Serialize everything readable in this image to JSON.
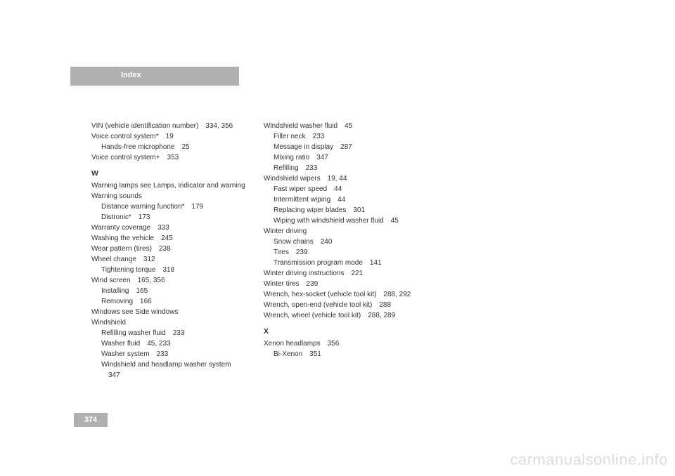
{
  "header": {
    "title": "Index"
  },
  "pageNumber": "374",
  "watermark": "carmanualsonline.info",
  "columns": [
    {
      "entries": [
        {
          "lvl": 0,
          "text": "VIN (vehicle identification number) 334, 356"
        },
        {
          "lvl": 0,
          "text": "Voice control system* 19"
        },
        {
          "lvl": 1,
          "text": "Hands-free microphone 25"
        },
        {
          "lvl": 0,
          "text": "Voice control system+ 353"
        },
        {
          "letter": "W"
        },
        {
          "lvl": 0,
          "text": "Warning lamps see Lamps, indicator and warning"
        },
        {
          "lvl": 0,
          "text": "Warning sounds"
        },
        {
          "lvl": 1,
          "text": "Distance warning function* 179"
        },
        {
          "lvl": 1,
          "text": "Distronic* 173"
        },
        {
          "lvl": 0,
          "text": "Warranty coverage 333"
        },
        {
          "lvl": 0,
          "text": "Washing the vehicle 245"
        },
        {
          "lvl": 0,
          "text": "Wear pattern (tires) 238"
        },
        {
          "lvl": 0,
          "text": "Wheel change 312"
        },
        {
          "lvl": 1,
          "text": "Tightening torque 318"
        },
        {
          "lvl": 0,
          "text": "Wind screen 165, 356"
        },
        {
          "lvl": 1,
          "text": "Installing 165"
        },
        {
          "lvl": 1,
          "text": "Removing 166"
        },
        {
          "lvl": 0,
          "text": "Windows see Side windows"
        },
        {
          "lvl": 0,
          "text": "Windshield"
        },
        {
          "lvl": 1,
          "text": "Refilling washer fluid 233"
        },
        {
          "lvl": 1,
          "text": "Washer fluid 45, 233"
        },
        {
          "lvl": 1,
          "text": "Washer system 233"
        },
        {
          "lvl": 1,
          "text": "Windshield and headlamp washer system 347"
        }
      ]
    },
    {
      "entries": [
        {
          "lvl": 0,
          "text": "Windshield washer fluid 45"
        },
        {
          "lvl": 1,
          "text": "Filler neck 233"
        },
        {
          "lvl": 1,
          "text": "Message in display 287"
        },
        {
          "lvl": 1,
          "text": "Mixing ratio 347"
        },
        {
          "lvl": 1,
          "text": "Refilling 233"
        },
        {
          "lvl": 0,
          "text": "Windshield wipers 19, 44"
        },
        {
          "lvl": 1,
          "text": "Fast wiper speed 44"
        },
        {
          "lvl": 1,
          "text": "Intermittent wiping 44"
        },
        {
          "lvl": 1,
          "text": "Replacing wiper blades 301"
        },
        {
          "lvl": 1,
          "text": "Wiping with windshield washer fluid 45"
        },
        {
          "lvl": 0,
          "text": "Winter driving"
        },
        {
          "lvl": 1,
          "text": "Snow chains 240"
        },
        {
          "lvl": 1,
          "text": "Tires 239"
        },
        {
          "lvl": 1,
          "text": "Transmission program mode 141"
        },
        {
          "lvl": 0,
          "text": "Winter driving instructions 221"
        },
        {
          "lvl": 0,
          "text": "Winter tires 239"
        },
        {
          "lvl": 0,
          "text": "Wrench, hex-socket (vehicle tool kit) 288, 292"
        },
        {
          "lvl": 0,
          "text": "Wrench, open-end (vehicle tool kit) 288"
        },
        {
          "lvl": 0,
          "text": "Wrench, wheel (vehicle tool kit) 288, 289"
        },
        {
          "letter": "X"
        },
        {
          "lvl": 0,
          "text": "Xenon headlamps 356"
        },
        {
          "lvl": 1,
          "text": "Bi-Xenon 351"
        }
      ]
    }
  ]
}
